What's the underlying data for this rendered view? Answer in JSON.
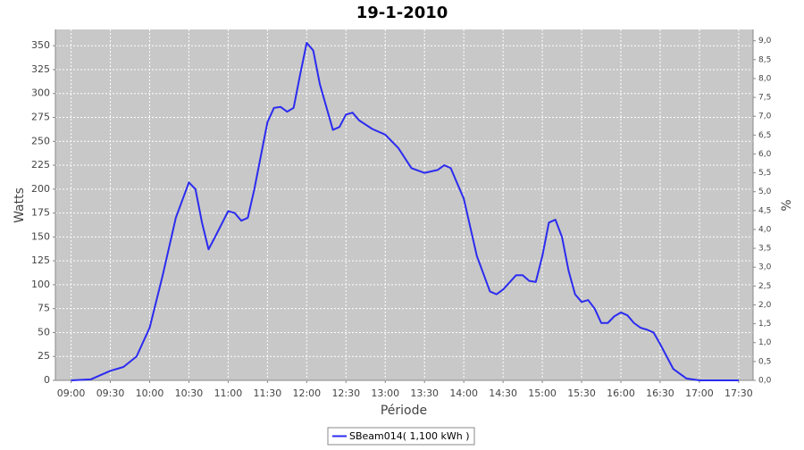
{
  "chart_data": {
    "type": "line",
    "title": "19-1-2010",
    "xlabel": "Période",
    "ylabel": "Watts",
    "y2label": "%",
    "x": [
      540,
      555,
      570,
      580,
      590,
      600,
      610,
      620,
      630,
      635,
      640,
      645,
      650,
      660,
      665,
      670,
      675,
      680,
      690,
      695,
      700,
      705,
      710,
      715,
      720,
      725,
      730,
      740,
      745,
      750,
      755,
      760,
      770,
      780,
      790,
      800,
      810,
      820,
      825,
      830,
      840,
      850,
      860,
      865,
      870,
      880,
      885,
      890,
      895,
      900,
      905,
      910,
      915,
      920,
      925,
      930,
      935,
      940,
      945,
      950,
      955,
      960,
      965,
      970,
      975,
      980,
      985,
      990,
      1000,
      1010,
      1020,
      1050
    ],
    "series": [
      {
        "name": "SBeam014( 1,100 kWh )",
        "color": "#2b2bf0",
        "values": [
          0,
          1,
          10,
          14,
          25,
          55,
          110,
          170,
          207,
          200,
          165,
          137,
          150,
          177,
          175,
          167,
          170,
          200,
          270,
          285,
          286,
          281,
          285,
          320,
          353,
          345,
          310,
          262,
          265,
          278,
          280,
          272,
          263,
          257,
          243,
          222,
          217,
          220,
          225,
          222,
          190,
          130,
          93,
          90,
          95,
          110,
          110,
          104,
          103,
          130,
          165,
          168,
          150,
          115,
          90,
          82,
          84,
          75,
          60,
          60,
          67,
          71,
          68,
          60,
          55,
          53,
          50,
          38,
          12,
          2,
          0,
          0
        ]
      }
    ],
    "xlim": [
      528,
      1061
    ],
    "xticks": [
      {
        "value": 540,
        "label": "09:00"
      },
      {
        "value": 570,
        "label": "09:30"
      },
      {
        "value": 600,
        "label": "10:00"
      },
      {
        "value": 630,
        "label": "10:30"
      },
      {
        "value": 660,
        "label": "11:00"
      },
      {
        "value": 690,
        "label": "11:30"
      },
      {
        "value": 720,
        "label": "12:00"
      },
      {
        "value": 750,
        "label": "12:30"
      },
      {
        "value": 780,
        "label": "13:00"
      },
      {
        "value": 810,
        "label": "13:30"
      },
      {
        "value": 840,
        "label": "14:00"
      },
      {
        "value": 870,
        "label": "14:30"
      },
      {
        "value": 900,
        "label": "15:00"
      },
      {
        "value": 930,
        "label": "15:30"
      },
      {
        "value": 960,
        "label": "16:00"
      },
      {
        "value": 990,
        "label": "16:30"
      },
      {
        "value": 1020,
        "label": "17:00"
      },
      {
        "value": 1050,
        "label": "17:30"
      }
    ],
    "ylim": [
      0,
      367
    ],
    "yticks": [
      0,
      25,
      50,
      75,
      100,
      125,
      150,
      175,
      200,
      225,
      250,
      275,
      300,
      325,
      350
    ],
    "y2lim": [
      0,
      9.3
    ],
    "y2ticks": [
      {
        "value": 0,
        "label": "0,0"
      },
      {
        "value": 0.5,
        "label": "0,5"
      },
      {
        "value": 1,
        "label": "1,0"
      },
      {
        "value": 1.5,
        "label": "1,5"
      },
      {
        "value": 2,
        "label": "2,0"
      },
      {
        "value": 2.5,
        "label": "2,5"
      },
      {
        "value": 3,
        "label": "3,0"
      },
      {
        "value": 3.5,
        "label": "3,5"
      },
      {
        "value": 4,
        "label": "4,0"
      },
      {
        "value": 4.5,
        "label": "4,5"
      },
      {
        "value": 5,
        "label": "5,0"
      },
      {
        "value": 5.5,
        "label": "5,5"
      },
      {
        "value": 6,
        "label": "6,0"
      },
      {
        "value": 6.5,
        "label": "6,5"
      },
      {
        "value": 7,
        "label": "7,0"
      },
      {
        "value": 7.5,
        "label": "7,5"
      },
      {
        "value": 8,
        "label": "8,0"
      },
      {
        "value": 8.5,
        "label": "8,5"
      },
      {
        "value": 9,
        "label": "9,0"
      }
    ],
    "grid": true
  }
}
